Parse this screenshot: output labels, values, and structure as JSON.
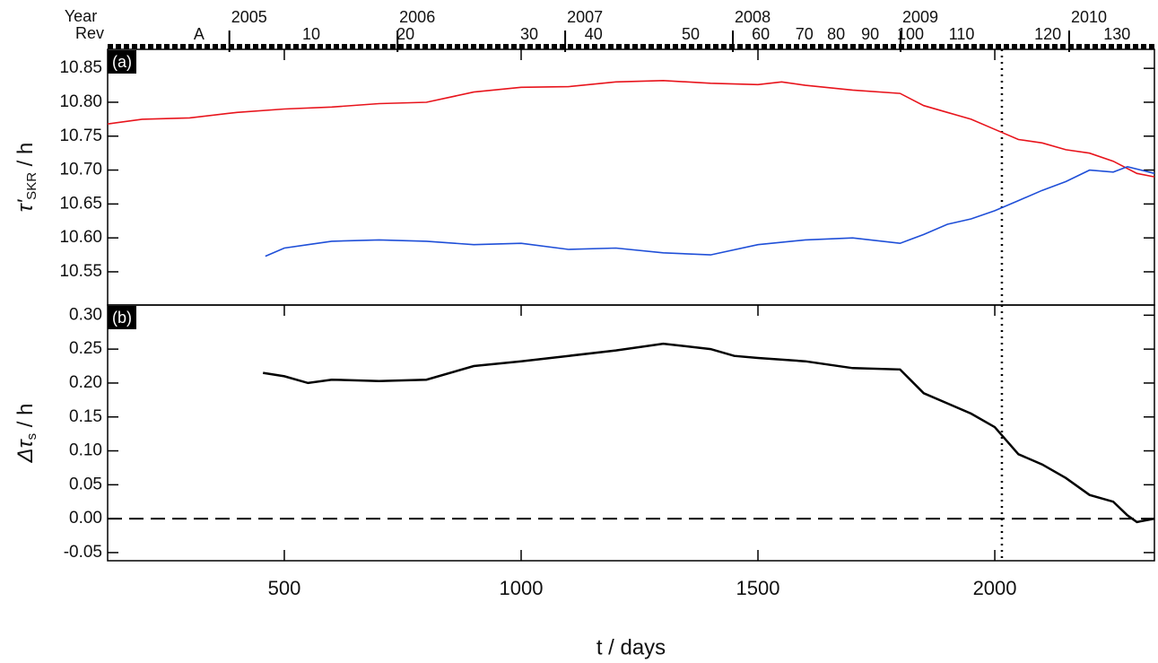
{
  "chart_data": [
    {
      "type": "line",
      "panel_label": "(a)",
      "y_label": {
        "main": "τ'",
        "sub": "SKR",
        "unit": " / h"
      },
      "xlim": [
        127,
        2337
      ],
      "ylim": [
        10.501,
        10.878
      ],
      "yticks": [
        10.55,
        {
          "value": 10.6,
          "label": "10.60"
        },
        10.65,
        {
          "value": 10.7,
          "label": "10.70"
        },
        10.75,
        {
          "value": 10.8,
          "label": "10.80"
        },
        10.85
      ],
      "vline": 2015,
      "top_axis": {
        "year_label": "Year",
        "rev_label": "Rev",
        "years": [
          {
            "value": 384,
            "label": "2005"
          },
          {
            "value": 739,
            "label": "2006"
          },
          {
            "value": 1093,
            "label": "2007"
          },
          {
            "value": 1447,
            "label": "2008"
          },
          {
            "value": 1801,
            "label": "2009"
          },
          {
            "value": 2157,
            "label": "2010"
          }
        ],
        "revs": [
          {
            "value": 320,
            "label": "A"
          },
          {
            "value": 557,
            "label": "10"
          },
          {
            "value": 756,
            "label": "20"
          },
          {
            "value": 1017,
            "label": "30"
          },
          {
            "value": 1153,
            "label": "40"
          },
          {
            "value": 1358,
            "label": "50"
          },
          {
            "value": 1506,
            "label": "60"
          },
          {
            "value": 1598,
            "label": "70"
          },
          {
            "value": 1665,
            "label": "80"
          },
          {
            "value": 1737,
            "label": "90"
          },
          {
            "value": 1822,
            "label": "100"
          },
          {
            "value": 1930,
            "label": "110"
          },
          {
            "value": 2112,
            "label": "120"
          },
          {
            "value": 2258,
            "label": "130"
          }
        ]
      },
      "series": [
        {
          "color": "#e8141c",
          "x": [
            127,
            200,
            300,
            400,
            500,
            600,
            700,
            800,
            900,
            1000,
            1100,
            1200,
            1300,
            1400,
            1500,
            1550,
            1600,
            1700,
            1800,
            1850,
            1900,
            1950,
            2000,
            2050,
            2100,
            2150,
            2200,
            2250,
            2300,
            2337
          ],
          "values": [
            10.768,
            10.775,
            10.777,
            10.785,
            10.79,
            10.793,
            10.798,
            10.8,
            10.815,
            10.822,
            10.823,
            10.83,
            10.832,
            10.828,
            10.826,
            10.83,
            10.825,
            10.818,
            10.813,
            10.795,
            10.785,
            10.775,
            10.76,
            10.745,
            10.74,
            10.73,
            10.725,
            10.713,
            10.695,
            10.69
          ]
        },
        {
          "color": "#1f4fd8",
          "x": [
            460,
            500,
            550,
            600,
            700,
            800,
            900,
            1000,
            1100,
            1200,
            1300,
            1400,
            1500,
            1600,
            1700,
            1800,
            1850,
            1900,
            1950,
            2000,
            2050,
            2100,
            2150,
            2200,
            2250,
            2280,
            2337
          ],
          "values": [
            10.573,
            10.585,
            10.59,
            10.595,
            10.597,
            10.595,
            10.59,
            10.592,
            10.583,
            10.585,
            10.578,
            10.575,
            10.59,
            10.597,
            10.6,
            10.592,
            10.605,
            10.62,
            10.628,
            10.64,
            10.655,
            10.67,
            10.683,
            10.7,
            10.697,
            10.705,
            10.695
          ]
        }
      ]
    },
    {
      "type": "line",
      "panel_label": "(b)",
      "y_label": {
        "main": "Δτ",
        "sub": "s",
        "unit": " / h"
      },
      "x_label": "t / days",
      "xlim": [
        127,
        2337
      ],
      "ylim": [
        -0.062,
        0.315
      ],
      "xticks": [
        500,
        1000,
        1500,
        2000
      ],
      "yticks": [
        -0.05,
        {
          "value": 0,
          "label": "0.00"
        },
        0.05,
        {
          "value": 0.1,
          "label": "0.10"
        },
        0.15,
        {
          "value": 0.2,
          "label": "0.20"
        },
        0.25,
        {
          "value": 0.3,
          "label": "0.30"
        }
      ],
      "vline": 2015,
      "hline": 0,
      "series": [
        {
          "color": "#000000",
          "x": [
            455,
            500,
            550,
            600,
            700,
            800,
            900,
            1000,
            1100,
            1200,
            1300,
            1400,
            1450,
            1500,
            1600,
            1700,
            1800,
            1850,
            1900,
            1950,
            2000,
            2050,
            2100,
            2150,
            2200,
            2250,
            2280,
            2300,
            2337
          ],
          "values": [
            0.215,
            0.21,
            0.2,
            0.205,
            0.203,
            0.205,
            0.225,
            0.232,
            0.24,
            0.248,
            0.258,
            0.25,
            0.24,
            0.237,
            0.232,
            0.222,
            0.22,
            0.185,
            0.17,
            0.155,
            0.135,
            0.095,
            0.08,
            0.06,
            0.035,
            0.025,
            0.005,
            -0.005,
            0.0
          ]
        }
      ]
    }
  ]
}
